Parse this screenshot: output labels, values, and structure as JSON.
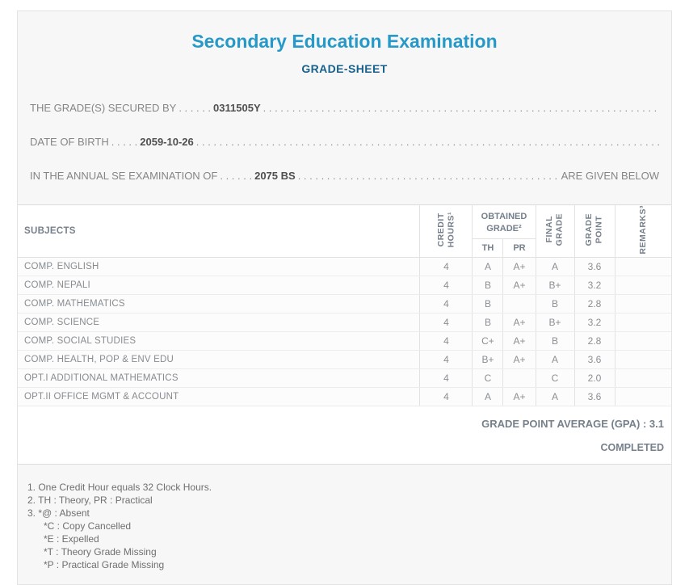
{
  "header": {
    "title": "Secondary Education Examination",
    "subtitle": "GRADE-SHEET"
  },
  "lines": [
    {
      "label": "THE GRADE(S) SECURED BY",
      "dots_before": ". . . . . .",
      "value": "0311505Y",
      "dots_after": ". . . . . . . . . . . . . . . . . . . . . . . . . . . . . . . . . . . . . . . . . . . . . . . . . . . . . . . . . . . . . . . . . . . . . . . . . . . . . . . . . . . . . . . . . . . . ",
      "suffix": ""
    },
    {
      "label": "DATE OF BIRTH",
      "dots_before": ". . . . .",
      "value": "2059-10-26",
      "dots_after": ". . . . . . . . . . . . . . . . . . . . . . . . . . . . . . . . . . . . . . . . . . . . . . . . . . . . . . . . . . . . . . . . . . . . . . . . . . . . . . . . . . . . . . . . . . . . ",
      "suffix": ""
    },
    {
      "label": "IN THE ANNUAL SE EXAMINATION OF",
      "dots_before": ". . . . . .",
      "value": "2075 BS",
      "dots_after": ". . . . . . . . . . . . . . . . . . . . . . . . . . . . . . . . . . . . . . . . . . . . . . . . . . . . . . . . . . . . . . . . . . . . . . . . . . . . . . . . . . . . . . . . . . . . ",
      "suffix": "ARE GIVEN BELOW"
    }
  ],
  "table": {
    "headers": {
      "subjects": "SUBJECTS",
      "credit_hours": "CREDIT\nHOURS¹",
      "obtained_grade": "OBTAINED\nGRADE²",
      "th": "TH",
      "pr": "PR",
      "final_grade": "FINAL\nGRADE",
      "grade_point": "GRADE\nPOINT",
      "remarks": "REMARKS³"
    },
    "rows": [
      {
        "subject": "COMP. ENGLISH",
        "credit_hours": "4",
        "th": "A",
        "pr": "A+",
        "final_grade": "A",
        "grade_point": "3.6",
        "remarks": ""
      },
      {
        "subject": "COMP. NEPALI",
        "credit_hours": "4",
        "th": "B",
        "pr": "A+",
        "final_grade": "B+",
        "grade_point": "3.2",
        "remarks": ""
      },
      {
        "subject": "COMP. MATHEMATICS",
        "credit_hours": "4",
        "th": "B",
        "pr": "",
        "final_grade": "B",
        "grade_point": "2.8",
        "remarks": ""
      },
      {
        "subject": "COMP. SCIENCE",
        "credit_hours": "4",
        "th": "B",
        "pr": "A+",
        "final_grade": "B+",
        "grade_point": "3.2",
        "remarks": ""
      },
      {
        "subject": "COMP. SOCIAL STUDIES",
        "credit_hours": "4",
        "th": "C+",
        "pr": "A+",
        "final_grade": "B",
        "grade_point": "2.8",
        "remarks": ""
      },
      {
        "subject": "COMP. HEALTH, POP & ENV EDU",
        "credit_hours": "4",
        "th": "B+",
        "pr": "A+",
        "final_grade": "A",
        "grade_point": "3.6",
        "remarks": ""
      },
      {
        "subject": "OPT.I ADDITIONAL MATHEMATICS",
        "credit_hours": "4",
        "th": "C",
        "pr": "",
        "final_grade": "C",
        "grade_point": "2.0",
        "remarks": ""
      },
      {
        "subject": "OPT.II OFFICE MGMT & ACCOUNT",
        "credit_hours": "4",
        "th": "A",
        "pr": "A+",
        "final_grade": "A",
        "grade_point": "3.6",
        "remarks": ""
      }
    ]
  },
  "summary": {
    "gpa_label": "GRADE POINT AVERAGE (GPA) :",
    "gpa_value": "3.1",
    "status": "COMPLETED"
  },
  "footnotes": [
    {
      "text": "1. One Credit Hour equals 32 Clock Hours.",
      "indent": false
    },
    {
      "text": "2. TH : Theory, PR : Practical",
      "indent": false
    },
    {
      "text": "3. *@ : Absent",
      "indent": false
    },
    {
      "text": "*C : Copy Cancelled",
      "indent": true
    },
    {
      "text": "*E : Expelled",
      "indent": true
    },
    {
      "text": "*T : Theory Grade Missing",
      "indent": true
    },
    {
      "text": "*P : Practical Grade Missing",
      "indent": true
    }
  ],
  "colors": {
    "title_blue": "#2699c8",
    "subtitle_blue": "#17618c",
    "header_text": "#76808b",
    "label_gray": "#858585",
    "value_gray": "#4f4f4f",
    "panel_bg": "#f7f7f7",
    "table_border": "#e2e2e2"
  }
}
